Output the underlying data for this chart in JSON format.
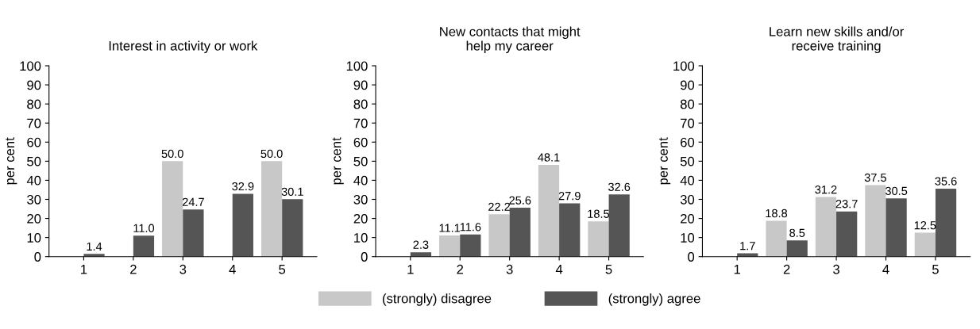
{
  "chart_data": [
    {
      "type": "bar",
      "title": "Interest in activity or work",
      "ylabel": "per cent",
      "categories": [
        "1",
        "2",
        "3",
        "4",
        "5"
      ],
      "ylim": [
        0,
        100
      ],
      "yticks": [
        0,
        10,
        20,
        30,
        40,
        50,
        60,
        70,
        80,
        90,
        100
      ],
      "grid": false,
      "legend": false,
      "series": [
        {
          "color": "#c8c8c8",
          "values": [
            0,
            0,
            50.0,
            0,
            50.0
          ],
          "value_labels": [
            null,
            null,
            "50.0",
            null,
            "50.0"
          ]
        },
        {
          "color": "#555555",
          "values": [
            1.4,
            11.0,
            24.7,
            32.9,
            30.1
          ],
          "value_labels": [
            "1.4",
            "11.0",
            "24.7",
            "32.9",
            "30.1"
          ]
        }
      ]
    },
    {
      "type": "bar",
      "title": "New contacts that might\nhelp my career",
      "ylabel": "per cent",
      "categories": [
        "1",
        "2",
        "3",
        "4",
        "5"
      ],
      "ylim": [
        0,
        100
      ],
      "yticks": [
        0,
        10,
        20,
        30,
        40,
        50,
        60,
        70,
        80,
        90,
        100
      ],
      "grid": false,
      "legend": "bottom",
      "series": [
        {
          "name": "(strongly) disagree",
          "color": "#c8c8c8",
          "values": [
            0,
            11.1,
            22.2,
            48.1,
            18.5
          ],
          "value_labels": [
            null,
            "11.1",
            "22.2",
            "48.1",
            "18.5"
          ]
        },
        {
          "name": "(strongly) agree",
          "color": "#555555",
          "values": [
            2.3,
            11.6,
            25.6,
            27.9,
            32.6
          ],
          "value_labels": [
            "2.3",
            "11.6",
            "25.6",
            "27.9",
            "32.6"
          ]
        }
      ]
    },
    {
      "type": "bar",
      "title": "Learn new skills and/or\nreceive training",
      "ylabel": "per cent",
      "categories": [
        "1",
        "2",
        "3",
        "4",
        "5"
      ],
      "ylim": [
        0,
        100
      ],
      "yticks": [
        0,
        10,
        20,
        30,
        40,
        50,
        60,
        70,
        80,
        90,
        100
      ],
      "grid": false,
      "legend": false,
      "series": [
        {
          "color": "#c8c8c8",
          "values": [
            0,
            18.8,
            31.2,
            37.5,
            12.5
          ],
          "value_labels": [
            null,
            "18.8",
            "31.2",
            "37.5",
            "12.5"
          ]
        },
        {
          "color": "#555555",
          "values": [
            1.7,
            8.5,
            23.7,
            30.5,
            35.6
          ],
          "value_labels": [
            "1.7",
            "8.5",
            "23.7",
            "30.5",
            "35.6"
          ]
        }
      ]
    }
  ]
}
